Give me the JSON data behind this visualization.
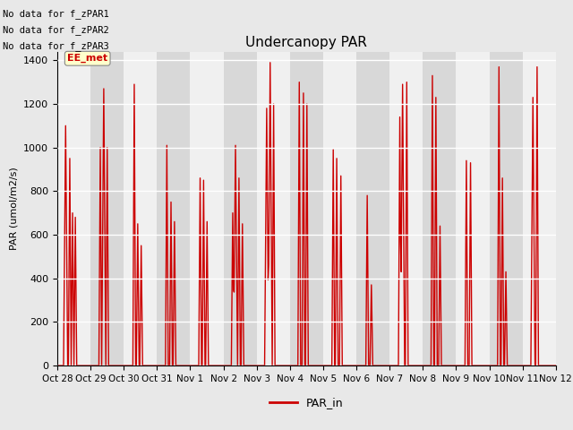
{
  "title": "Undercanopy PAR",
  "ylabel": "PAR (umol/m2/s)",
  "ylim": [
    0,
    1440
  ],
  "yticks": [
    0,
    200,
    400,
    600,
    800,
    1000,
    1200,
    1400
  ],
  "line_color": "#cc0000",
  "line_width": 1.0,
  "legend_label": "PAR_in",
  "annotation_text": "EE_met",
  "annotation_color": "#cc0000",
  "annotation_bg": "#ffffcc",
  "note_lines": [
    "No data for f_zPAR1",
    "No data for f_zPAR2",
    "No data for f_zPAR3"
  ],
  "x_tick_labels": [
    "Oct 28",
    "Oct 29",
    "Oct 30",
    "Oct 31",
    "Nov 1",
    "Nov 2",
    "Nov 3",
    "Nov 4",
    "Nov 5",
    "Nov 6",
    "Nov 7",
    "Nov 8",
    "Nov 9",
    "Nov 10",
    "Nov 11",
    "Nov 12"
  ],
  "n_days": 15,
  "samples_per_day": 48,
  "day_peaks": [
    1100,
    1270,
    1290,
    1010,
    860,
    1010,
    1390,
    1300,
    990,
    780,
    1290,
    1330,
    940,
    1370,
    1230
  ],
  "bg_color": "#e8e8e8",
  "band_light": "#f0f0f0",
  "band_dark": "#d8d8d8"
}
